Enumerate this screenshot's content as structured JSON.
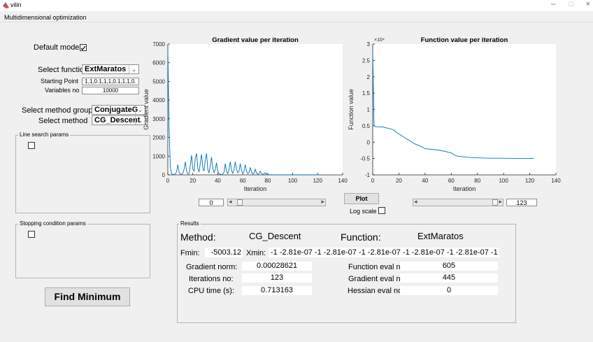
{
  "window": {
    "title": "vilin",
    "subtitle": "Multidimensional optimization",
    "minimize": "–",
    "maximize": "□",
    "close": "×"
  },
  "controls": {
    "default_mode_label": "Default mode:",
    "select_function_label": "Select function",
    "select_function_value": "ExtMaratos",
    "starting_point_label": "Starting Point",
    "starting_point_value": "1,1,0.1,1,1,0.1,1,1,0.",
    "variables_label": "Variables no",
    "variables_value": "10000",
    "method_group_label": "Select method group",
    "method_group_value": "ConjugateGr...",
    "method_label": "Select method",
    "method_value": "CG_Descent",
    "line_search_label": "Line search params",
    "stopping_label": "Stopping condition params",
    "find_minimum_label": "Find Minimum"
  },
  "plot_controls": {
    "plot_label": "Plot",
    "log_scale_label": "Log scale",
    "left_slider_value": "0",
    "right_slider_value": "123",
    "arrow_left": "◂",
    "arrow_right": "▸"
  },
  "results": {
    "group_label": "Results",
    "method_label": "Method:",
    "method_value": "CG_Descent",
    "function_label": "Function:",
    "function_value": "ExtMaratos",
    "fmin_label": "Fmin:",
    "fmin_value": "-5003.12",
    "xmin_label": "Xmin:",
    "xmin_value": "-1 -2.81e-07 -1 -2.81e-07 -1 -2.81e-07 -1 -2.81e-07 -1 -2.81e-07 -1",
    "gradient_norm_label": "Gradient norm:",
    "gradient_norm_value": "0.00028621",
    "iterations_label": "Iterations no:",
    "iterations_value": "123",
    "cpu_label": "CPU time (s):",
    "cpu_value": "0.713163",
    "func_eval_label": "Function eval no:",
    "func_eval_value": "605",
    "grad_eval_label": "Gradient eval no:",
    "grad_eval_value": "445",
    "hess_eval_label": "Hessian  eval no:",
    "hess_eval_value": "0"
  },
  "chart_data": [
    {
      "type": "line",
      "title": "Gradient value per iteration",
      "xlabel": "Iteration",
      "ylabel": "Gradient value",
      "xlim": [
        0,
        140
      ],
      "ylim": [
        0,
        7000
      ],
      "xticks": [
        0,
        20,
        40,
        60,
        80,
        100,
        120,
        140
      ],
      "yticks": [
        0,
        1000,
        2000,
        3000,
        4000,
        5000,
        6000,
        7000
      ],
      "color": "#0072bd",
      "series": [
        {
          "x": [
            0,
            1,
            2,
            3,
            4,
            5,
            6,
            7,
            8,
            9,
            10,
            11,
            12,
            13,
            14,
            15,
            16,
            17,
            18,
            19,
            20,
            21,
            22,
            23,
            24,
            25,
            26,
            27,
            28,
            29,
            30,
            31,
            32,
            33,
            34,
            35,
            36,
            37,
            38,
            39,
            40,
            41,
            42,
            43,
            44,
            45,
            46,
            47,
            48,
            49,
            50,
            51,
            52,
            53,
            54,
            55,
            56,
            57,
            58,
            59,
            60,
            61,
            62,
            63,
            64,
            65,
            66,
            67,
            68,
            69,
            70,
            71,
            72,
            73,
            74,
            75,
            76,
            77,
            78,
            79,
            80,
            85,
            90,
            100,
            110,
            123
          ],
          "y": [
            6700,
            2500,
            400,
            60,
            30,
            20,
            50,
            150,
            550,
            120,
            40,
            30,
            80,
            300,
            700,
            200,
            50,
            80,
            500,
            1050,
            300,
            200,
            900,
            1150,
            350,
            150,
            600,
            1100,
            400,
            200,
            800,
            1150,
            300,
            100,
            500,
            950,
            350,
            120,
            300,
            650,
            200,
            60,
            30,
            20,
            40,
            150,
            600,
            200,
            60,
            300,
            700,
            250,
            80,
            250,
            700,
            300,
            100,
            200,
            600,
            250,
            80,
            180,
            550,
            200,
            60,
            120,
            400,
            150,
            40,
            80,
            300,
            100,
            30,
            60,
            200,
            80,
            20,
            40,
            120,
            40,
            10,
            5,
            3,
            2,
            2,
            2
          ]
        }
      ]
    },
    {
      "type": "line",
      "title": "Function value per iteration",
      "xlabel": "Iteration",
      "ylabel": "Function value",
      "ylabel_multiplier": "×10⁴",
      "xlim": [
        0,
        140
      ],
      "ylim": [
        -1,
        3
      ],
      "xticks": [
        0,
        20,
        40,
        60,
        80,
        100,
        120,
        140
      ],
      "yticks": [
        -1,
        -0.5,
        0,
        0.5,
        1,
        1.5,
        2,
        2.5,
        3
      ],
      "color": "#0072bd",
      "series": [
        {
          "x": [
            0,
            1,
            2,
            3,
            8,
            12,
            16,
            18,
            20,
            22,
            25,
            28,
            30,
            32,
            35,
            38,
            40,
            45,
            50,
            55,
            60,
            62,
            64,
            70,
            75,
            80,
            90,
            100,
            110,
            123
          ],
          "y": [
            2.75,
            0.5,
            0.48,
            0.47,
            0.46,
            0.42,
            0.38,
            0.3,
            0.25,
            0.2,
            0.12,
            0.05,
            0.0,
            -0.05,
            -0.1,
            -0.15,
            -0.2,
            -0.22,
            -0.24,
            -0.28,
            -0.33,
            -0.38,
            -0.42,
            -0.45,
            -0.47,
            -0.48,
            -0.49,
            -0.49,
            -0.5,
            -0.5
          ]
        }
      ]
    }
  ]
}
